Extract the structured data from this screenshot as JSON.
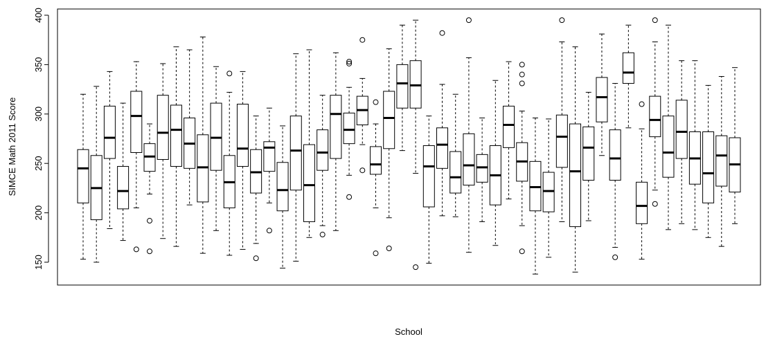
{
  "chart_data": {
    "type": "boxplot",
    "xlabel": "School",
    "ylabel": "SIMCE Math 2011 Score",
    "ylim": [
      125,
      405
    ],
    "yticks": [
      150,
      200,
      250,
      300,
      350,
      400
    ],
    "boxes": [
      {
        "whisker_low": 153,
        "q1": 210,
        "median": 245,
        "q3": 264,
        "whisker_high": 320,
        "outliers": []
      },
      {
        "whisker_low": 150,
        "q1": 193,
        "median": 225,
        "q3": 258,
        "whisker_high": 328,
        "outliers": []
      },
      {
        "whisker_low": 184,
        "q1": 255,
        "median": 276,
        "q3": 308,
        "whisker_high": 343,
        "outliers": []
      },
      {
        "whisker_low": 172,
        "q1": 204,
        "median": 222,
        "q3": 247,
        "whisker_high": 311,
        "outliers": []
      },
      {
        "whisker_low": 205,
        "q1": 261,
        "median": 298,
        "q3": 323,
        "whisker_high": 353,
        "outliers": [
          163
        ]
      },
      {
        "whisker_low": 219,
        "q1": 242,
        "median": 257,
        "q3": 270,
        "whisker_high": 290,
        "outliers": [
          192,
          161
        ]
      },
      {
        "whisker_low": 174,
        "q1": 254,
        "median": 281,
        "q3": 319,
        "whisker_high": 351,
        "outliers": []
      },
      {
        "whisker_low": 166,
        "q1": 247,
        "median": 284,
        "q3": 309,
        "whisker_high": 368,
        "outliers": []
      },
      {
        "whisker_low": 208,
        "q1": 245,
        "median": 270,
        "q3": 296,
        "whisker_high": 365,
        "outliers": []
      },
      {
        "whisker_low": 159,
        "q1": 211,
        "median": 246,
        "q3": 279,
        "whisker_high": 378,
        "outliers": []
      },
      {
        "whisker_low": 182,
        "q1": 243,
        "median": 276,
        "q3": 311,
        "whisker_high": 348,
        "outliers": []
      },
      {
        "whisker_low": 157,
        "q1": 205,
        "median": 231,
        "q3": 258,
        "whisker_high": 322,
        "outliers": [
          341
        ]
      },
      {
        "whisker_low": 163,
        "q1": 247,
        "median": 265,
        "q3": 310,
        "whisker_high": 343,
        "outliers": []
      },
      {
        "whisker_low": 169,
        "q1": 220,
        "median": 241,
        "q3": 264,
        "whisker_high": 298,
        "outliers": [
          154
        ]
      },
      {
        "whisker_low": 210,
        "q1": 242,
        "median": 266,
        "q3": 272,
        "whisker_high": 306,
        "outliers": [
          182
        ]
      },
      {
        "whisker_low": 144,
        "q1": 202,
        "median": 223,
        "q3": 251,
        "whisker_high": 288,
        "outliers": []
      },
      {
        "whisker_low": 151,
        "q1": 223,
        "median": 263,
        "q3": 298,
        "whisker_high": 361,
        "outliers": []
      },
      {
        "whisker_low": 175,
        "q1": 191,
        "median": 228,
        "q3": 269,
        "whisker_high": 365,
        "outliers": []
      },
      {
        "whisker_low": 187,
        "q1": 243,
        "median": 261,
        "q3": 284,
        "whisker_high": 319,
        "outliers": [
          178
        ]
      },
      {
        "whisker_low": 182,
        "q1": 255,
        "median": 300,
        "q3": 319,
        "whisker_high": 362,
        "outliers": []
      },
      {
        "whisker_low": 238,
        "q1": 270,
        "median": 284,
        "q3": 301,
        "whisker_high": 327,
        "outliers": [
          216,
          351,
          353
        ]
      },
      {
        "whisker_low": 269,
        "q1": 289,
        "median": 304,
        "q3": 318,
        "whisker_high": 336,
        "outliers": [
          243,
          375
        ]
      },
      {
        "whisker_low": 205,
        "q1": 239,
        "median": 249,
        "q3": 267,
        "whisker_high": 290,
        "outliers": [
          159,
          312
        ]
      },
      {
        "whisker_low": 195,
        "q1": 265,
        "median": 296,
        "q3": 323,
        "whisker_high": 366,
        "outliers": [
          164
        ]
      },
      {
        "whisker_low": 263,
        "q1": 306,
        "median": 331,
        "q3": 350,
        "whisker_high": 390,
        "outliers": []
      },
      {
        "whisker_low": 240,
        "q1": 306,
        "median": 329,
        "q3": 354,
        "whisker_high": 395,
        "outliers": [
          145
        ]
      },
      {
        "whisker_low": 149,
        "q1": 206,
        "median": 247,
        "q3": 268,
        "whisker_high": 298,
        "outliers": []
      },
      {
        "whisker_low": 197,
        "q1": 245,
        "median": 269,
        "q3": 286,
        "whisker_high": 330,
        "outliers": [
          382
        ]
      },
      {
        "whisker_low": 196,
        "q1": 220,
        "median": 236,
        "q3": 262,
        "whisker_high": 320,
        "outliers": []
      },
      {
        "whisker_low": 160,
        "q1": 228,
        "median": 248,
        "q3": 280,
        "whisker_high": 357,
        "outliers": [
          395
        ]
      },
      {
        "whisker_low": 191,
        "q1": 231,
        "median": 246,
        "q3": 259,
        "whisker_high": 296,
        "outliers": []
      },
      {
        "whisker_low": 167,
        "q1": 208,
        "median": 238,
        "q3": 268,
        "whisker_high": 334,
        "outliers": []
      },
      {
        "whisker_low": 214,
        "q1": 266,
        "median": 289,
        "q3": 308,
        "whisker_high": 353,
        "outliers": []
      },
      {
        "whisker_low": 187,
        "q1": 232,
        "median": 252,
        "q3": 271,
        "whisker_high": 303,
        "outliers": [
          161,
          331,
          340,
          350
        ]
      },
      {
        "whisker_low": 138,
        "q1": 202,
        "median": 226,
        "q3": 252,
        "whisker_high": 296,
        "outliers": []
      },
      {
        "whisker_low": 155,
        "q1": 201,
        "median": 222,
        "q3": 241,
        "whisker_high": 295,
        "outliers": []
      },
      {
        "whisker_low": 191,
        "q1": 246,
        "median": 277,
        "q3": 299,
        "whisker_high": 373,
        "outliers": [
          395
        ]
      },
      {
        "whisker_low": 140,
        "q1": 186,
        "median": 242,
        "q3": 290,
        "whisker_high": 368,
        "outliers": []
      },
      {
        "whisker_low": 192,
        "q1": 233,
        "median": 266,
        "q3": 287,
        "whisker_high": 322,
        "outliers": []
      },
      {
        "whisker_low": 258,
        "q1": 292,
        "median": 317,
        "q3": 337,
        "whisker_high": 381,
        "outliers": []
      },
      {
        "whisker_low": 165,
        "q1": 233,
        "median": 255,
        "q3": 284,
        "whisker_high": 331,
        "outliers": [
          155
        ]
      },
      {
        "whisker_low": 286,
        "q1": 331,
        "median": 342,
        "q3": 362,
        "whisker_high": 390,
        "outliers": []
      },
      {
        "whisker_low": 153,
        "q1": 189,
        "median": 207,
        "q3": 231,
        "whisker_high": 285,
        "outliers": [
          310
        ]
      },
      {
        "whisker_low": 223,
        "q1": 277,
        "median": 294,
        "q3": 318,
        "whisker_high": 373,
        "outliers": [
          395,
          209
        ]
      },
      {
        "whisker_low": 183,
        "q1": 236,
        "median": 261,
        "q3": 298,
        "whisker_high": 390,
        "outliers": []
      },
      {
        "whisker_low": 189,
        "q1": 255,
        "median": 282,
        "q3": 314,
        "whisker_high": 354,
        "outliers": []
      },
      {
        "whisker_low": 183,
        "q1": 229,
        "median": 255,
        "q3": 282,
        "whisker_high": 354,
        "outliers": []
      },
      {
        "whisker_low": 175,
        "q1": 210,
        "median": 240,
        "q3": 282,
        "whisker_high": 329,
        "outliers": []
      },
      {
        "whisker_low": 166,
        "q1": 227,
        "median": 258,
        "q3": 278,
        "whisker_high": 338,
        "outliers": []
      },
      {
        "whisker_low": 189,
        "q1": 221,
        "median": 249,
        "q3": 276,
        "whisker_high": 347,
        "outliers": []
      }
    ],
    "grid": false,
    "legend": "none"
  }
}
